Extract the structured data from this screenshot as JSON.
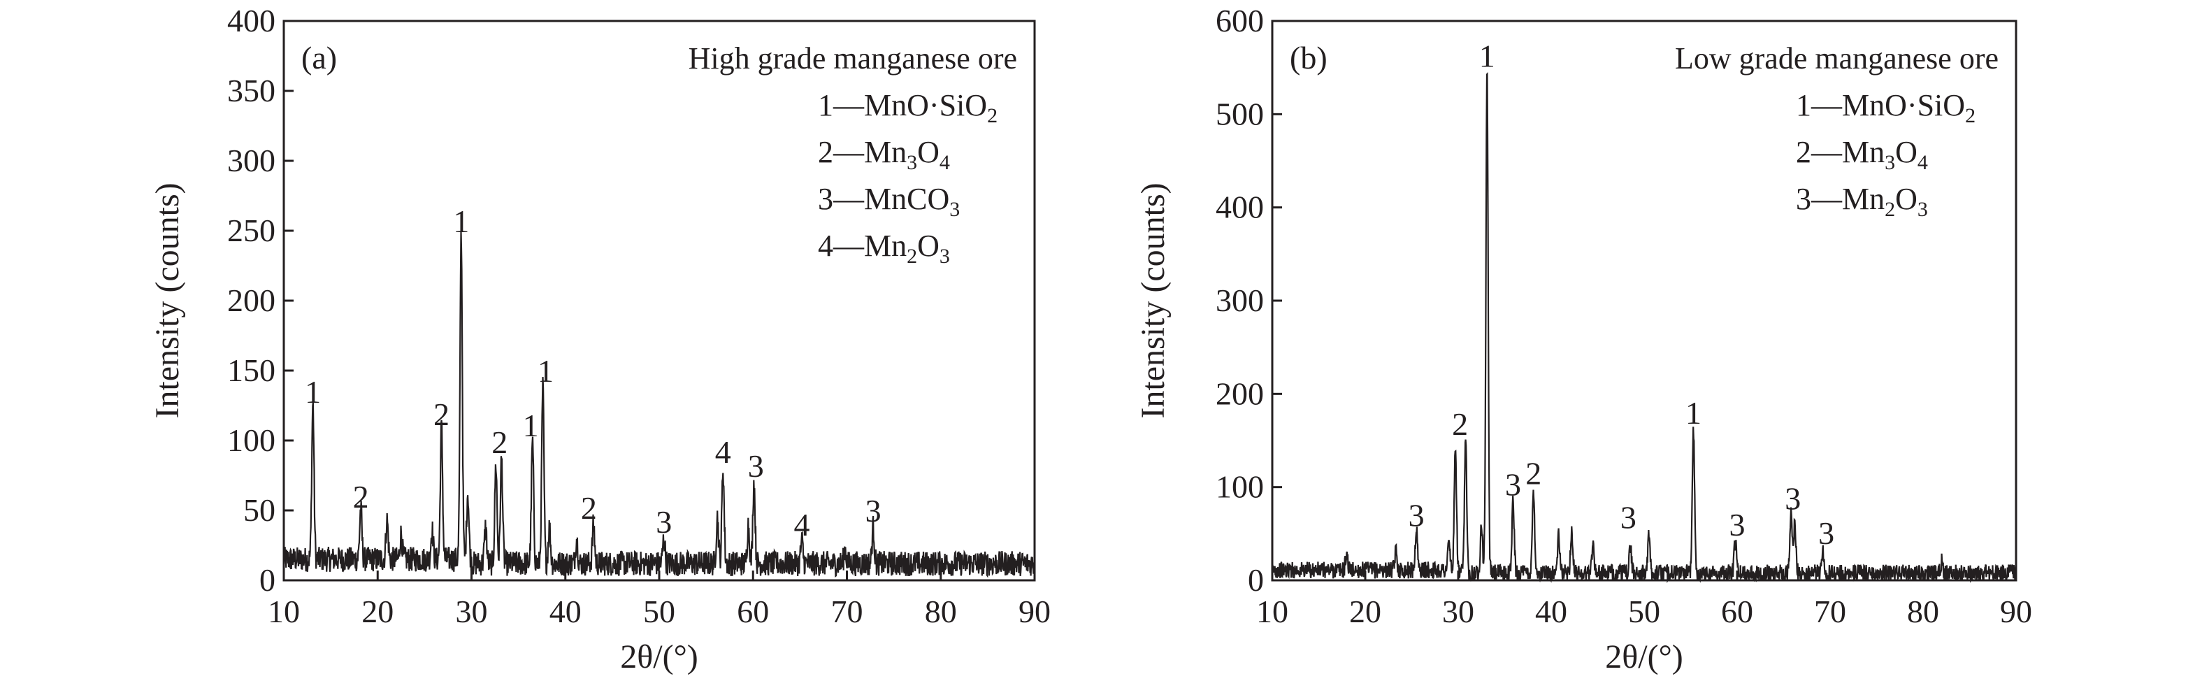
{
  "chart_data": [
    {
      "type": "line",
      "panel_label": "(a)",
      "title": "High grade manganese ore",
      "xlabel": "2θ/(°)",
      "ylabel": "Intensity (counts)",
      "xlim": [
        10,
        90
      ],
      "ylim": [
        0,
        400
      ],
      "xticks": [
        10,
        20,
        30,
        40,
        50,
        60,
        70,
        80,
        90
      ],
      "yticks": [
        0,
        50,
        100,
        150,
        200,
        250,
        300,
        350,
        400
      ],
      "baseline": 12,
      "noise": 9,
      "peaks": [
        {
          "x": 13.1,
          "y": 123
        },
        {
          "x": 18.2,
          "y": 48
        },
        {
          "x": 21.0,
          "y": 40
        },
        {
          "x": 22.5,
          "y": 30
        },
        {
          "x": 25.8,
          "y": 33
        },
        {
          "x": 26.8,
          "y": 107
        },
        {
          "x": 28.9,
          "y": 245
        },
        {
          "x": 29.6,
          "y": 60
        },
        {
          "x": 31.5,
          "y": 38
        },
        {
          "x": 32.6,
          "y": 83
        },
        {
          "x": 33.2,
          "y": 87
        },
        {
          "x": 36.5,
          "y": 99
        },
        {
          "x": 37.6,
          "y": 138
        },
        {
          "x": 38.3,
          "y": 38
        },
        {
          "x": 41.2,
          "y": 30
        },
        {
          "x": 43.0,
          "y": 40
        },
        {
          "x": 50.5,
          "y": 30
        },
        {
          "x": 56.2,
          "y": 45
        },
        {
          "x": 56.8,
          "y": 80
        },
        {
          "x": 59.5,
          "y": 40
        },
        {
          "x": 60.1,
          "y": 70
        },
        {
          "x": 65.2,
          "y": 28
        },
        {
          "x": 69.8,
          "y": 22
        },
        {
          "x": 72.8,
          "y": 38
        }
      ],
      "annotations": [
        {
          "text": "1",
          "x": 13.1,
          "y": 123
        },
        {
          "text": "2",
          "x": 18.2,
          "y": 48
        },
        {
          "text": "2",
          "x": 26.8,
          "y": 107
        },
        {
          "text": "1",
          "x": 28.9,
          "y": 245
        },
        {
          "text": "2",
          "x": 33.0,
          "y": 87
        },
        {
          "text": "1",
          "x": 36.3,
          "y": 99
        },
        {
          "text": "1",
          "x": 37.9,
          "y": 138
        },
        {
          "text": "2",
          "x": 42.5,
          "y": 40
        },
        {
          "text": "3",
          "x": 50.5,
          "y": 30
        },
        {
          "text": "4",
          "x": 56.8,
          "y": 80
        },
        {
          "text": "3",
          "x": 60.3,
          "y": 70
        },
        {
          "text": "4",
          "x": 65.2,
          "y": 28
        },
        {
          "text": "3",
          "x": 72.8,
          "y": 38
        }
      ],
      "legend": [
        {
          "num": "1",
          "formula": "MnO·SiO2"
        },
        {
          "num": "2",
          "formula": "Mn3O4"
        },
        {
          "num": "3",
          "formula": "MnCO3"
        },
        {
          "num": "4",
          "formula": "Mn2O3"
        }
      ],
      "legend_placement": "top-right",
      "grid": false
    },
    {
      "type": "line",
      "panel_label": "(b)",
      "title": "Low grade manganese ore",
      "xlabel": "2θ/(°)",
      "ylabel": "Intensity (counts)",
      "xlim": [
        10,
        90
      ],
      "ylim": [
        0,
        600
      ],
      "xticks": [
        10,
        20,
        30,
        40,
        50,
        60,
        70,
        80,
        90
      ],
      "yticks": [
        0,
        100,
        200,
        300,
        400,
        500,
        600
      ],
      "baseline": 8,
      "noise": 9,
      "peaks": [
        {
          "x": 18.0,
          "y": 25
        },
        {
          "x": 23.3,
          "y": 28
        },
        {
          "x": 25.5,
          "y": 52
        },
        {
          "x": 29.0,
          "y": 38
        },
        {
          "x": 29.7,
          "y": 137
        },
        {
          "x": 30.8,
          "y": 150
        },
        {
          "x": 32.5,
          "y": 62
        },
        {
          "x": 33.1,
          "y": 545
        },
        {
          "x": 35.9,
          "y": 85
        },
        {
          "x": 38.1,
          "y": 97
        },
        {
          "x": 40.8,
          "y": 47
        },
        {
          "x": 42.2,
          "y": 53
        },
        {
          "x": 44.5,
          "y": 40
        },
        {
          "x": 48.5,
          "y": 38
        },
        {
          "x": 50.5,
          "y": 47
        },
        {
          "x": 55.3,
          "y": 162
        },
        {
          "x": 59.8,
          "y": 42
        },
        {
          "x": 65.8,
          "y": 70
        },
        {
          "x": 66.2,
          "y": 62
        },
        {
          "x": 69.2,
          "y": 33
        },
        {
          "x": 82.0,
          "y": 20
        }
      ],
      "annotations": [
        {
          "text": "3",
          "x": 25.5,
          "y": 52
        },
        {
          "text": "2",
          "x": 30.2,
          "y": 150
        },
        {
          "text": "1",
          "x": 33.1,
          "y": 545
        },
        {
          "text": "3",
          "x": 35.9,
          "y": 85
        },
        {
          "text": "2",
          "x": 38.1,
          "y": 97
        },
        {
          "text": "3",
          "x": 48.3,
          "y": 50
        },
        {
          "text": "1",
          "x": 55.3,
          "y": 162
        },
        {
          "text": "3",
          "x": 60.0,
          "y": 42
        },
        {
          "text": "3",
          "x": 66.0,
          "y": 70
        },
        {
          "text": "3",
          "x": 69.6,
          "y": 33
        }
      ],
      "legend": [
        {
          "num": "1",
          "formula": "MnO·SiO2"
        },
        {
          "num": "2",
          "formula": "Mn3O4"
        },
        {
          "num": "3",
          "formula": "Mn2O3"
        }
      ],
      "legend_placement": "top-right",
      "grid": false
    }
  ]
}
